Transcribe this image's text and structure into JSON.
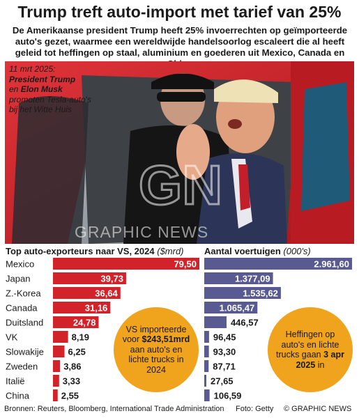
{
  "header": {
    "title": "Trump treft auto-import met tarief van 25%",
    "intro": "De Amerikaanse president Trump heeft 25% invoerrechten op geïmporteerde auto's gezet, waarmee een wereldwijde handelsoorlog escaleert die al heeft geleid tot heffingen op staal, aluminium en goederen uit Mexico, Canada en China"
  },
  "photo": {
    "caption_date": "11 mrt 2025:",
    "caption_name1": "President Trump",
    "caption_en": "en",
    "caption_name2": "Elon Musk",
    "caption_rest": "promoten Tesla-auto's bij het Witte Huis",
    "watermark_logo": "GN",
    "watermark_text": "GRAPHIC NEWS"
  },
  "colors": {
    "red": "#d2232a",
    "purple": "#595a92",
    "orange": "#f0a31c"
  },
  "chart_data": [
    {
      "type": "bar",
      "title": "Top auto-exporteurs naar VS, 2024",
      "unit": "($mrd)",
      "categories": [
        "Mexico",
        "Japan",
        "Z.-Korea",
        "Canada",
        "Duitsland",
        "VK",
        "Slowakije",
        "Zweden",
        "Italië",
        "China"
      ],
      "values": [
        79.5,
        39.73,
        36.64,
        31.16,
        24.78,
        8.19,
        6.25,
        3.86,
        3.33,
        2.55
      ],
      "labels": [
        "79,50",
        "39,73",
        "36,64",
        "31,16",
        "24,78",
        "8,19",
        "6,25",
        "3,86",
        "3,33",
        "2,55"
      ],
      "color": "#d2232a"
    },
    {
      "type": "bar",
      "title": "Aantal voertuigen",
      "unit": "(000's)",
      "categories": [
        "Mexico",
        "Japan",
        "Z.-Korea",
        "Canada",
        "Duitsland",
        "VK",
        "Slowakije",
        "Zweden",
        "Italië",
        "China"
      ],
      "values": [
        2961.6,
        1377.09,
        1535.62,
        1065.47,
        446.57,
        96.45,
        93.3,
        87.71,
        27.65,
        106.59
      ],
      "labels": [
        "2.961,60",
        "1.377,09",
        "1.535,62",
        "1.065,47",
        "446,57",
        "96,45",
        "93,30",
        "87,71",
        "27,65",
        "106,59"
      ],
      "color": "#595a92"
    }
  ],
  "callouts": {
    "left_pre": "VS importeerde voor",
    "left_bold": "$243,51mrd",
    "left_post": "aan auto's en lichte trucks in 2024",
    "right_pre": "Heffingen op auto's en lichte trucks gaan",
    "right_bold": "3 apr 2025",
    "right_post": "in"
  },
  "footer": {
    "sources": "Bronnen: Reuters, Bloomberg, International Trade Administration",
    "photo_credit": "Foto: Getty",
    "copyright": "© GRAPHIC NEWS"
  }
}
